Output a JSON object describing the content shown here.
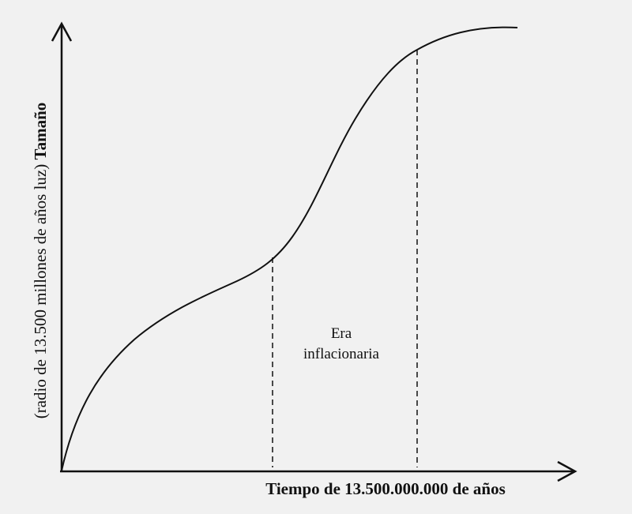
{
  "axes": {
    "x_label": "Tiempo de 13.500.000.000 de años",
    "y_label_note": "(radio de 13.500 millones de años luz)",
    "y_label": "Tamaño"
  },
  "annotation": {
    "lines": [
      "Era",
      "inflacionaria"
    ]
  }
}
